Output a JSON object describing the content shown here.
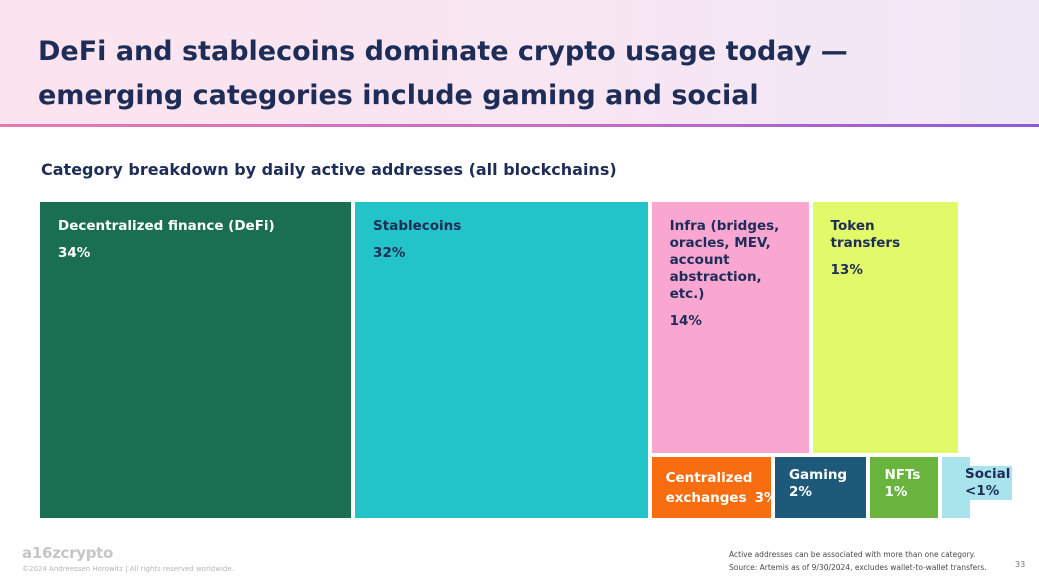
{
  "header": {
    "title": "DeFi and stablecoins dominate crypto usage today — emerging categories include gaming and social"
  },
  "chart_data": {
    "type": "treemap",
    "title": "Category breakdown by daily active addresses (all blockchains)",
    "categories": [
      {
        "label": "Decentralized finance (DeFi)",
        "display": "34%",
        "value": 34,
        "color": "#1a6e52",
        "text_color": "#ffffff"
      },
      {
        "label": "Stablecoins",
        "display": "32%",
        "value": 32,
        "color": "#23c4c9",
        "text_color": "#1d2d57"
      },
      {
        "label": "Infra (bridges, oracles, MEV, account abstraction, etc.)",
        "display": "14%",
        "value": 14,
        "color": "#f9a6d0",
        "text_color": "#1d2d57"
      },
      {
        "label": "Token transfers",
        "display": "13%",
        "value": 13,
        "color": "#e2f96a",
        "text_color": "#1d2d57"
      },
      {
        "label": "Centralized exchanges",
        "display": "3%",
        "value": 3,
        "color": "#f76d0f",
        "text_color": "#ffffff"
      },
      {
        "label": "Gaming",
        "display": "2%",
        "value": 2,
        "color": "#1d5a79",
        "text_color": "#ffffff"
      },
      {
        "label": "NFTs",
        "display": "1%",
        "value": 1,
        "color": "#6ab43e",
        "text_color": "#ffffff"
      },
      {
        "label": "Social",
        "display": "<1%",
        "value": 0.5,
        "color": "#a9e3ec",
        "text_color": "#1d2d57"
      }
    ]
  },
  "footer": {
    "logo": "a16zcrypto",
    "copyright": "©2024 Andreessen Horowitz  |  All rights reserved worldwide.",
    "note1": "Active addresses can be associated with more than one category.",
    "note2": "Source: Artemis as of 9/30/2024, excludes wallet-to-wallet transfers.",
    "page": "33"
  }
}
